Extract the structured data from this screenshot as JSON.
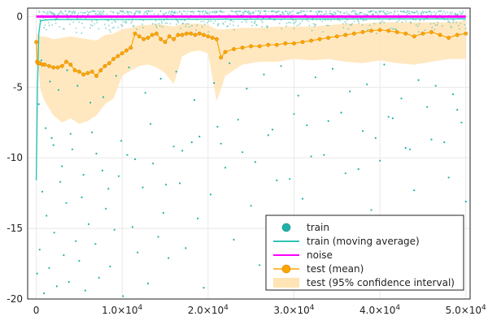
{
  "chart_data": {
    "type": "scatter",
    "title": "",
    "xlabel": "",
    "ylabel": "",
    "xlim": [
      -1000,
      50500
    ],
    "ylim": [
      -20,
      0.6
    ],
    "y_reversed_display": true,
    "grid": true,
    "legend_position": "bottom-right",
    "x_ticks": [
      0,
      10000,
      20000,
      30000,
      40000,
      50000
    ],
    "x_tick_labels": [
      {
        "base": "0",
        "exp": ""
      },
      {
        "base": "1.0×10",
        "exp": "4"
      },
      {
        "base": "2.0×10",
        "exp": "4"
      },
      {
        "base": "3.0×10",
        "exp": "4"
      },
      {
        "base": "4.0×10",
        "exp": "4"
      },
      {
        "base": "5.0×10",
        "exp": "4"
      }
    ],
    "y_ticks": [
      0,
      -5,
      -10,
      -15,
      -20
    ],
    "y_tick_labels": [
      "0",
      "-5",
      "-10",
      "-15",
      "-20"
    ],
    "colors": {
      "train": "#20b2aa",
      "train_moving_average": "#2ec4b6",
      "noise": "#ff00ff",
      "test_mean": "#ffa500",
      "test_ci": "#ffe4b5"
    },
    "series": [
      {
        "name": "train",
        "kind": "scatter",
        "x": [
          100,
          400,
          700,
          900,
          1200,
          1500,
          1800,
          2100,
          2400,
          2800,
          3200,
          3500,
          3800,
          4200,
          4600,
          5000,
          5300,
          5700,
          6100,
          6500,
          6900,
          7300,
          7700,
          8100,
          8600,
          9100,
          9600,
          10100,
          10600,
          11200,
          11800,
          12400,
          13000,
          13600,
          14200,
          14800,
          15400,
          16000,
          16700,
          17400,
          18100,
          18800,
          19500,
          20300,
          21100,
          22000,
          23000,
          24000,
          25000,
          26000,
          27000,
          28000,
          29000,
          30000,
          31000,
          32000,
          33000,
          34000,
          35000,
          36000,
          37000,
          38000,
          39000,
          40000,
          41000,
          42000,
          43000,
          44000,
          45000,
          46000,
          47000,
          48000,
          49000,
          50000,
          300,
          1100,
          2000,
          3000,
          4000,
          5500,
          7000,
          8400,
          9900,
          11500,
          13300,
          15100,
          17000,
          19000,
          21500,
          23500,
          25500,
          27500,
          29500,
          31500,
          33500,
          35500,
          37500,
          39500,
          41500,
          43500,
          45500,
          47500,
          49500,
          600,
          1600,
          2600,
          3600,
          4800,
          6300,
          7800,
          9300,
          10800,
          12700,
          14500,
          16300,
          18400,
          20700,
          22500,
          24500,
          26500,
          28500,
          30500,
          32500,
          34500,
          36500,
          38500,
          40500,
          42500,
          44500,
          46500,
          48500
        ],
        "y": [
          -18.2,
          -16.5,
          -12.4,
          -19.6,
          -14.1,
          -17.8,
          -8.6,
          -15.3,
          -19.1,
          -11.7,
          -16.9,
          -13.2,
          -18.8,
          -9.4,
          -15.9,
          -17.3,
          -12.8,
          -19.4,
          -14.7,
          -8.2,
          -16.1,
          -18.5,
          -10.9,
          -13.6,
          -17.7,
          -15.1,
          -11.3,
          -19.8,
          -9.8,
          -14.9,
          -16.7,
          -12.1,
          -18.9,
          -10.4,
          -15.6,
          -13.9,
          -17.1,
          -9.2,
          -11.8,
          -16.4,
          -8.9,
          -14.3,
          -19.2,
          -12.6,
          -7.8,
          -10.7,
          -15.8,
          -9.6,
          -13.4,
          -17.6,
          -8.4,
          -11.6,
          -16.2,
          -6.9,
          -12.9,
          -9.9,
          -18.1,
          -7.4,
          -14.6,
          -11.1,
          -16.8,
          -8.1,
          -13.7,
          -10.2,
          -7.1,
          -15.4,
          -9.3,
          -12.3,
          -17.4,
          -8.7,
          -14.8,
          -11.4,
          -6.6,
          -13.1,
          -6.2,
          -7.9,
          -9.1,
          -10.6,
          -8.3,
          -11.2,
          -9.7,
          -12.2,
          -8.8,
          -10.1,
          -7.6,
          -11.9,
          -9.5,
          -8.5,
          -9.0,
          -7.3,
          -10.3,
          -8.0,
          -11.5,
          -7.7,
          -9.8,
          -6.8,
          -10.8,
          -8.6,
          -7.2,
          -9.4,
          -6.4,
          -8.9,
          -7.5,
          -3.1,
          -4.6,
          -5.2,
          -3.8,
          -4.9,
          -6.1,
          -5.7,
          -4.2,
          -3.6,
          -5.4,
          -4.4,
          -3.9,
          -5.9,
          -4.7,
          -3.3,
          -5.1,
          -4.1,
          -3.5,
          -5.6,
          -4.3,
          -3.7,
          -5.3,
          -4.8,
          -3.4,
          -5.8,
          -4.5,
          -4.9,
          -5.5
        ],
        "note": "sampled outliers below the dense band near 0"
      },
      {
        "name": "train (moving average)",
        "kind": "line",
        "x": [
          0,
          150,
          300,
          500,
          1000,
          2000,
          5000,
          10000,
          20000,
          30000,
          40000,
          50000
        ],
        "y": [
          -11.6,
          -5.0,
          -1.2,
          -0.3,
          -0.25,
          -0.2,
          -0.2,
          -0.2,
          -0.18,
          -0.17,
          -0.16,
          -0.16
        ]
      },
      {
        "name": "noise",
        "kind": "line",
        "x": [
          0,
          10000,
          20000,
          30000,
          40000,
          50000
        ],
        "y": [
          0.0,
          0.0,
          0.0,
          0.0,
          0.0,
          0.0
        ]
      },
      {
        "name": "test (mean)",
        "kind": "line-marker",
        "x": [
          0,
          100,
          200,
          400,
          700,
          1000,
          1500,
          2000,
          2500,
          3000,
          3500,
          4000,
          4500,
          5000,
          5500,
          6000,
          6500,
          7000,
          7500,
          8000,
          8500,
          9000,
          9500,
          10000,
          10500,
          11000,
          11500,
          12000,
          12500,
          13000,
          13500,
          14000,
          14500,
          15000,
          15500,
          16000,
          16500,
          17000,
          17500,
          18000,
          18500,
          19000,
          19500,
          20000,
          20500,
          21000,
          21500,
          22000,
          23000,
          24000,
          25000,
          26000,
          27000,
          28000,
          29000,
          30000,
          31000,
          32000,
          33000,
          34000,
          35000,
          36000,
          37000,
          38000,
          39000,
          40000,
          41000,
          42000,
          43000,
          44000,
          45000,
          46000,
          47000,
          48000,
          49000,
          50000
        ],
        "y": [
          -1.8,
          -3.2,
          -3.3,
          -3.3,
          -3.4,
          -3.4,
          -3.5,
          -3.6,
          -3.6,
          -3.5,
          -3.2,
          -3.4,
          -3.8,
          -3.9,
          -4.1,
          -4.0,
          -3.9,
          -4.2,
          -3.8,
          -3.5,
          -3.3,
          -3.0,
          -2.8,
          -2.6,
          -2.4,
          -2.2,
          -1.2,
          -1.4,
          -1.6,
          -1.5,
          -1.3,
          -1.2,
          -1.6,
          -1.8,
          -1.4,
          -1.6,
          -1.3,
          -1.3,
          -1.2,
          -1.2,
          -1.3,
          -1.2,
          -1.3,
          -1.4,
          -1.5,
          -1.6,
          -2.9,
          -2.5,
          -2.3,
          -2.2,
          -2.1,
          -2.1,
          -2.0,
          -2.0,
          -1.9,
          -1.9,
          -1.8,
          -1.7,
          -1.6,
          -1.5,
          -1.4,
          -1.3,
          -1.2,
          -1.1,
          -1.0,
          -0.95,
          -1.0,
          -1.1,
          -1.2,
          -1.4,
          -1.2,
          -1.1,
          -1.3,
          -1.5,
          -1.3,
          -1.2
        ]
      },
      {
        "name": "test (95% confidence interval)",
        "kind": "band",
        "x": [
          0,
          500,
          1000,
          2000,
          3000,
          4000,
          5000,
          6000,
          7000,
          8000,
          9000,
          10000,
          11000,
          12000,
          13000,
          14000,
          15000,
          16000,
          17000,
          18000,
          19000,
          20000,
          21000,
          22000,
          24000,
          26000,
          28000,
          30000,
          32000,
          34000,
          36000,
          38000,
          40000,
          42000,
          44000,
          46000,
          48000,
          50000
        ],
        "lower": [
          -2.0,
          -5.2,
          -6.0,
          -7.0,
          -7.5,
          -7.2,
          -7.6,
          -7.4,
          -7.0,
          -6.2,
          -5.8,
          -4.2,
          -3.8,
          -3.5,
          -3.4,
          -3.6,
          -4.0,
          -4.8,
          -2.8,
          -2.5,
          -2.4,
          -2.6,
          -6.0,
          -4.2,
          -3.4,
          -3.2,
          -3.2,
          -3.0,
          -3.1,
          -3.0,
          -3.2,
          -3.3,
          -3.1,
          -3.3,
          -3.4,
          -3.2,
          -3.0,
          -3.0
        ],
        "upper": [
          -1.2,
          -1.4,
          -1.4,
          -1.6,
          -1.5,
          -1.4,
          -1.5,
          -1.6,
          -1.7,
          -1.3,
          -1.2,
          -0.9,
          -0.8,
          -0.6,
          -0.6,
          -0.5,
          -0.6,
          -0.7,
          -0.5,
          -0.5,
          -0.5,
          -0.6,
          -0.9,
          -0.9,
          -0.8,
          -0.8,
          -0.7,
          -0.7,
          -0.7,
          -0.6,
          -0.5,
          -0.5,
          -0.4,
          -0.4,
          -0.4,
          -0.4,
          -0.4,
          -0.3
        ]
      }
    ],
    "legend": [
      {
        "label": "train",
        "symbol": "circle",
        "color": "#20b2aa"
      },
      {
        "label": "train (moving average)",
        "symbol": "line",
        "color": "#2ec4b6"
      },
      {
        "label": "noise",
        "symbol": "line",
        "color": "#ff00ff"
      },
      {
        "label": "test (mean)",
        "symbol": "line-circle",
        "color": "#ffa500"
      },
      {
        "label": "test (95% confidence interval)",
        "symbol": "box",
        "color": "#ffe4b5"
      }
    ]
  }
}
